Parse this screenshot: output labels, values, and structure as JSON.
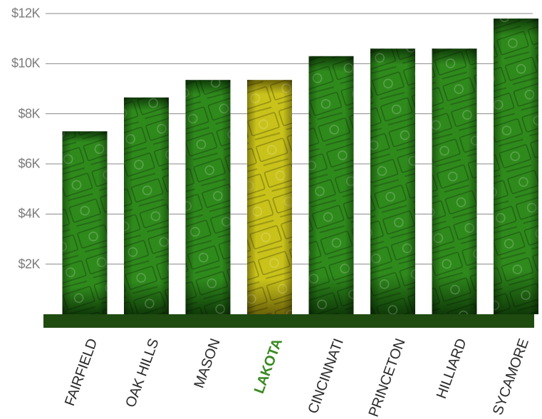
{
  "chart_data": {
    "type": "bar",
    "categories": [
      "FAIRFIELD",
      "OAK HILLS",
      "MASON",
      "LAKOTA",
      "CINCINNATI",
      "PRINCETON",
      "HILLIARD",
      "SYCAMORE"
    ],
    "values": [
      7300,
      8650,
      9350,
      9350,
      10300,
      10600,
      10600,
      11800
    ],
    "highlight_category": "LAKOTA",
    "title": "",
    "xlabel": "",
    "ylabel": "",
    "ylim": [
      0,
      12000
    ],
    "yticks": [
      2000,
      4000,
      6000,
      8000,
      10000,
      12000
    ],
    "ytick_labels": [
      "$2K",
      "$4K",
      "$6K",
      "$8K",
      "$10K",
      "$12K"
    ],
    "grid": true,
    "legend": "none",
    "colors": {
      "bar_fill": "#2f8a1c",
      "bar_fill_dark": "#0f3a08",
      "highlight_fill": "#c9c21a",
      "highlight_fill_dark": "#6b6208",
      "baseline": "#1f4a10",
      "grid": "#8a8a8a",
      "tick_text": "#7b7b7b",
      "category_text": "#2a2a2a",
      "highlight_text": "#3a8a22"
    }
  }
}
